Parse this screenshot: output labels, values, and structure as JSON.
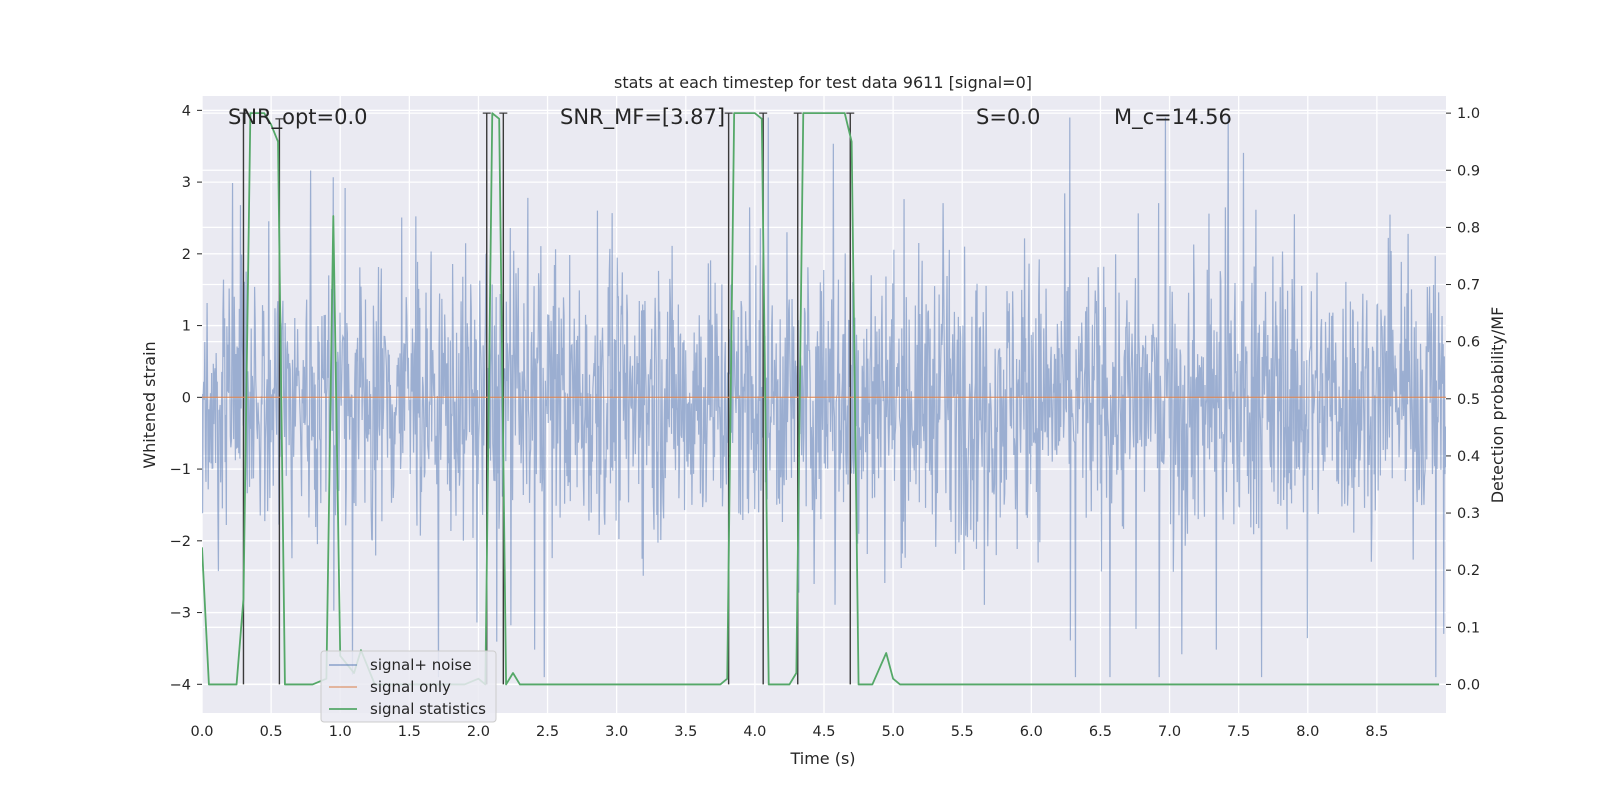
{
  "chart_data": {
    "type": "line",
    "title": "stats at each timestep for test data 9611 [signal=0]",
    "xlabel": "Time (s)",
    "ylabel": "Whitened strain",
    "y2label": "Detection probability/MF",
    "xlim": [
      0.0,
      9.0
    ],
    "ylim": [
      -4.4,
      4.2
    ],
    "y2lim": [
      -0.05,
      1.03
    ],
    "xticks": [
      0.0,
      0.5,
      1.0,
      1.5,
      2.0,
      2.5,
      3.0,
      3.5,
      4.0,
      4.5,
      5.0,
      5.5,
      6.0,
      6.5,
      7.0,
      7.5,
      8.0,
      8.5
    ],
    "xtick_labels": [
      "0.0",
      "0.5",
      "1.0",
      "1.5",
      "2.0",
      "2.5",
      "3.0",
      "3.5",
      "4.0",
      "4.5",
      "5.0",
      "5.5",
      "6.0",
      "6.5",
      "7.0",
      "7.5",
      "8.0",
      "8.5"
    ],
    "yticks": [
      4,
      3,
      2,
      1,
      0,
      -1,
      -2,
      -3,
      -4
    ],
    "ytick_labels": [
      "4",
      "3",
      "2",
      "1",
      "0",
      "−1",
      "−2",
      "−3",
      "−4"
    ],
    "y2ticks": [
      1.0,
      0.9,
      0.8,
      0.7,
      0.6,
      0.5,
      0.4,
      0.3,
      0.2,
      0.1,
      0.0
    ],
    "y2tick_labels": [
      "1.0",
      "0.9",
      "0.8",
      "0.7",
      "0.6",
      "0.5",
      "0.4",
      "0.3",
      "0.2",
      "0.1",
      "0.0"
    ],
    "grid": true,
    "annotations": [
      {
        "name": "snr-opt",
        "text": "SNR_opt=0.0"
      },
      {
        "name": "snr-mf",
        "text": "SNR_MF=[3.87]"
      },
      {
        "name": "s-stat",
        "text": "S=0.0"
      },
      {
        "name": "mc",
        "text": "M_c=14.56"
      }
    ],
    "legend": {
      "location": "lower-left",
      "entries": [
        {
          "label": "signal+ noise",
          "color": "#4c72b0"
        },
        {
          "label": "signal only",
          "color": "#dd8452"
        },
        {
          "label": "signal statistics",
          "color": "#55a868"
        }
      ]
    },
    "series": [
      {
        "name": "signal+ noise",
        "color": "#4c72b0",
        "description": "whitened strain noise, roughly +/-2 with peaks near +/-3.8",
        "typical_amplitude": 1.5,
        "peak_amplitude": 3.9,
        "tmax": 9.0
      },
      {
        "name": "signal only",
        "color": "#dd8452",
        "x": [
          0.0,
          9.0
        ],
        "y": [
          0.0,
          0.0
        ]
      },
      {
        "name": "signal statistics",
        "color": "#55a868",
        "axis": "right",
        "x": [
          0.0,
          0.05,
          0.25,
          0.3,
          0.35,
          0.45,
          0.5,
          0.55,
          0.6,
          0.65,
          0.8,
          0.9,
          0.95,
          1.0,
          1.1,
          1.15,
          1.25,
          1.9,
          2.0,
          2.05,
          2.1,
          2.15,
          2.2,
          2.25,
          2.3,
          2.4,
          3.75,
          3.8,
          3.85,
          3.9,
          4.0,
          4.05,
          4.1,
          4.15,
          4.25,
          4.3,
          4.35,
          4.4,
          4.6,
          4.65,
          4.7,
          4.75,
          4.85,
          4.95,
          5.0,
          5.05,
          8.95
        ],
        "y": [
          0.24,
          0.0,
          0.0,
          0.15,
          1.0,
          1.0,
          0.98,
          0.95,
          0.0,
          0.0,
          0.0,
          0.01,
          0.82,
          0.05,
          0.02,
          0.06,
          0.0,
          0.0,
          0.01,
          0.0,
          1.0,
          0.99,
          0.0,
          0.02,
          0.0,
          0.0,
          0.0,
          0.01,
          1.0,
          1.0,
          1.0,
          0.99,
          0.0,
          0.0,
          0.0,
          0.02,
          1.0,
          1.0,
          1.0,
          1.0,
          0.95,
          0.0,
          0.0,
          0.055,
          0.01,
          0.0,
          0.0
        ]
      }
    ],
    "vertical_markers": [
      {
        "x": 0.3,
        "y": 0.0,
        "yerr_top": 1.0
      },
      {
        "x": 0.56,
        "y": 0.0,
        "yerr_top": 0.99
      },
      {
        "x": 2.06,
        "y": 0.0,
        "yerr_top": 1.0
      },
      {
        "x": 2.18,
        "y": 0.0,
        "yerr_top": 1.0
      },
      {
        "x": 3.81,
        "y": 0.0,
        "yerr_top": 1.0
      },
      {
        "x": 4.06,
        "y": 0.0,
        "yerr_top": 1.0
      },
      {
        "x": 4.31,
        "y": 0.0,
        "yerr_top": 1.0
      },
      {
        "x": 4.69,
        "y": 0.0,
        "yerr_top": 1.0
      }
    ]
  }
}
